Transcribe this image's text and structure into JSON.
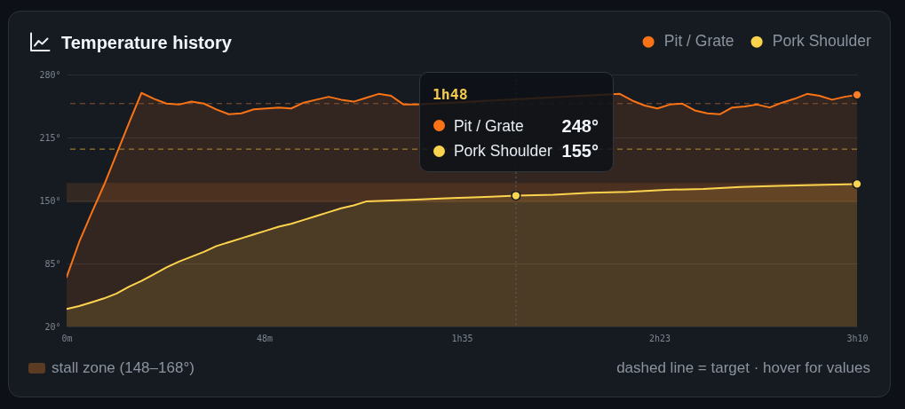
{
  "chart_data": {
    "type": "area",
    "title": "Temperature history",
    "series": [
      {
        "name": "Pit / Grate",
        "color": "#f97316",
        "x": [
          0,
          3,
          6,
          9,
          12,
          15,
          18,
          21,
          24,
          27,
          30,
          33,
          36,
          39,
          42,
          45,
          48,
          51,
          54,
          57,
          60,
          63,
          66,
          69,
          72,
          75,
          78,
          81,
          84,
          87,
          90,
          93,
          96,
          99,
          102,
          105,
          108,
          111,
          114,
          117,
          120,
          124,
          127,
          130,
          133,
          136,
          139,
          142,
          145,
          148,
          151,
          154,
          157,
          160,
          163,
          166,
          169,
          172,
          175,
          178,
          181,
          184,
          187,
          190
        ],
        "values": [
          71,
          107,
          137,
          166,
          198,
          230,
          261,
          255,
          250,
          249,
          252,
          250,
          244,
          239,
          240,
          244,
          245,
          246,
          245,
          251,
          254,
          257,
          254,
          252,
          256,
          260,
          258,
          249,
          249,
          null,
          null,
          null,
          null,
          null,
          null,
          null,
          null,
          null,
          null,
          null,
          null,
          null,
          null,
          null,
          260,
          253,
          248,
          245,
          249,
          250,
          243,
          240,
          239,
          246,
          247,
          249,
          246,
          251,
          255,
          260,
          258,
          254,
          257,
          259
        ]
      },
      {
        "name": "Pork Shoulder",
        "color": "#fcd34d",
        "x": [
          0,
          3,
          6,
          9,
          12,
          15,
          18,
          21,
          24,
          27,
          30,
          33,
          36,
          39,
          42,
          45,
          48,
          51,
          54,
          57,
          60,
          63,
          66,
          69,
          72,
          78,
          84,
          90,
          96,
          102,
          108,
          117,
          126,
          135,
          144,
          153,
          162,
          171,
          180,
          190
        ],
        "values": [
          38,
          41,
          45,
          49,
          54,
          61,
          67,
          74,
          81,
          87,
          92,
          97,
          103,
          107,
          111,
          115,
          119,
          123,
          126,
          130,
          134,
          138,
          142,
          145,
          149,
          150,
          151,
          152,
          153,
          154,
          155,
          156,
          158,
          159,
          161,
          162,
          164,
          165,
          166,
          167
        ]
      },
      {
        "type": "scatter",
        "color": "#fb7d24",
        "x": [
          190
        ],
        "values": [
          259
        ]
      },
      {
        "type": "scatter",
        "color": "#fdd64f",
        "x": [
          108,
          190
        ],
        "values": [
          155,
          167
        ]
      }
    ],
    "xlim": [
      0,
      190
    ],
    "xticks": [
      {
        "value": 0,
        "label": "0m"
      },
      {
        "value": 47.5,
        "label": "48m"
      },
      {
        "value": 95,
        "label": "1h35"
      },
      {
        "value": 142.5,
        "label": "2h23"
      },
      {
        "value": 190,
        "label": "3h10"
      }
    ],
    "ylim": [
      20,
      280
    ],
    "yticks": [
      {
        "value": 20,
        "label": "20°"
      },
      {
        "value": 85,
        "label": "85°"
      },
      {
        "value": 150,
        "label": "150°"
      },
      {
        "value": 215,
        "label": "215°"
      },
      {
        "value": 280,
        "label": "280°"
      }
    ],
    "grid": "y",
    "legend": "top right",
    "ref_lines": [
      {
        "axis": "y",
        "value": 250,
        "color": "#8c5430",
        "line_style": "dashed"
      },
      {
        "axis": "y",
        "value": 203,
        "color": "#9b7a2b",
        "line_style": "dashed"
      },
      {
        "axis": "x",
        "value": 108,
        "color": "#555b63",
        "line_style": "dotted"
      }
    ],
    "bands": [
      {
        "axis": "y",
        "from": 148,
        "to": 168,
        "color": "#5c3b23"
      }
    ],
    "annotations": [
      "1h48",
      "248°",
      "155°",
      "stall zone (148–168°)",
      "dashed line = target · hover for values"
    ]
  }
}
